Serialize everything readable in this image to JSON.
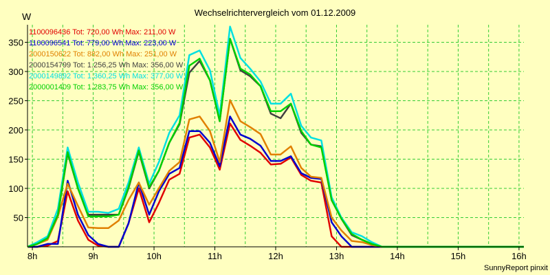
{
  "chart_data": {
    "type": "line",
    "title": "Wechselrichtervergleich vom 01.12.2009",
    "ylabel": "W",
    "xlabel": "",
    "x_tick_labels": [
      "8h",
      "9h",
      "10h",
      "11h",
      "12h",
      "13h",
      "14h",
      "15h",
      "16h"
    ],
    "y_ticks": [
      50,
      100,
      150,
      200,
      250,
      300,
      350
    ],
    "ylim": [
      0,
      380
    ],
    "xlim": [
      7.92,
      16.08
    ],
    "grid": true,
    "legend_position": "top-left",
    "footer": "SunnyReport pinxit",
    "x": [
      7.92,
      8.08,
      8.25,
      8.42,
      8.58,
      8.75,
      8.92,
      9.08,
      9.25,
      9.42,
      9.58,
      9.75,
      9.92,
      10.08,
      10.25,
      10.42,
      10.58,
      10.75,
      10.92,
      11.08,
      11.25,
      11.42,
      11.58,
      11.75,
      11.92,
      12.08,
      12.25,
      12.42,
      12.58,
      12.75,
      12.92,
      13.08,
      13.25,
      13.42,
      13.58,
      13.75,
      13.92,
      14.08,
      14.25,
      14.42,
      14.58,
      14.75,
      14.92,
      15.08,
      15.25,
      15.42,
      15.58,
      15.75,
      15.92,
      16.08
    ],
    "series": [
      {
        "name": "1100096436",
        "label": "1100096436 Tot: 720,00 Wh Max: 211,00 W",
        "color": "#e00000",
        "values": [
          0,
          0,
          2,
          10,
          95,
          45,
          12,
          2,
          0,
          0,
          40,
          100,
          42,
          75,
          115,
          125,
          187,
          192,
          170,
          132,
          211,
          183,
          173,
          161,
          141,
          142,
          153,
          123,
          113,
          110,
          18,
          0,
          0,
          0,
          0,
          0,
          0,
          0,
          0,
          0,
          0,
          0,
          0,
          0,
          0,
          0,
          0,
          0,
          0,
          0
        ]
      },
      {
        "name": "1100096541",
        "label": "1100096541 Tot: 779,00 Wh Max: 223,00 W",
        "color": "#0000d0",
        "values": [
          0,
          0,
          5,
          5,
          113,
          55,
          20,
          5,
          0,
          0,
          40,
          110,
          55,
          95,
          125,
          135,
          198,
          198,
          178,
          138,
          223,
          192,
          185,
          173,
          147,
          147,
          155,
          126,
          118,
          116,
          42,
          18,
          0,
          0,
          0,
          0,
          0,
          0,
          0,
          0,
          0,
          0,
          0,
          0,
          0,
          0,
          0,
          0,
          0,
          0
        ]
      },
      {
        "name": "2000150622",
        "label": "2000150622 Tot: 882,00 Wh Max: 251,00 W",
        "color": "#e08000",
        "values": [
          0,
          5,
          12,
          52,
          108,
          70,
          33,
          32,
          32,
          45,
          80,
          110,
          72,
          100,
          130,
          145,
          218,
          223,
          198,
          145,
          251,
          215,
          205,
          193,
          158,
          158,
          172,
          135,
          120,
          118,
          50,
          28,
          10,
          8,
          3,
          0,
          0,
          0,
          0,
          0,
          0,
          0,
          0,
          0,
          0,
          0,
          0,
          0,
          0,
          0
        ]
      },
      {
        "name": "2000154799",
        "label": "2000154799 Tot: 1.256,25 Wh Max: 356,00 W",
        "color": "#404040",
        "values": [
          0,
          5,
          15,
          55,
          160,
          100,
          55,
          55,
          55,
          55,
          100,
          163,
          100,
          130,
          178,
          210,
          298,
          318,
          285,
          215,
          356,
          302,
          292,
          275,
          228,
          220,
          245,
          195,
          175,
          172,
          80,
          48,
          20,
          12,
          5,
          0,
          0,
          0,
          0,
          0,
          0,
          0,
          0,
          0,
          0,
          0,
          0,
          0,
          0,
          0
        ]
      },
      {
        "name": "2000149892",
        "label": "2000149892 Tot: 1.360,25 Wh Max: 377,00 W",
        "color": "#00e0e0",
        "values": [
          0,
          8,
          18,
          65,
          170,
          110,
          60,
          60,
          58,
          65,
          110,
          170,
          108,
          145,
          195,
          225,
          328,
          336,
          302,
          225,
          377,
          323,
          305,
          283,
          245,
          245,
          262,
          207,
          187,
          182,
          85,
          50,
          25,
          18,
          8,
          0,
          0,
          0,
          0,
          0,
          0,
          0,
          0,
          0,
          0,
          0,
          0,
          0,
          0,
          0
        ]
      },
      {
        "name": "2000001409",
        "label": "2000001409 Tot: 1.283,75 Wh Max: 356,00 W",
        "color": "#00d000",
        "values": [
          0,
          5,
          15,
          55,
          162,
          100,
          52,
          52,
          52,
          55,
          102,
          165,
          102,
          130,
          178,
          212,
          310,
          322,
          285,
          215,
          356,
          305,
          295,
          275,
          232,
          232,
          245,
          198,
          175,
          170,
          80,
          48,
          22,
          12,
          5,
          0,
          0,
          0,
          0,
          0,
          0,
          0,
          0,
          0,
          0,
          0,
          0,
          0,
          0,
          0
        ]
      }
    ]
  }
}
